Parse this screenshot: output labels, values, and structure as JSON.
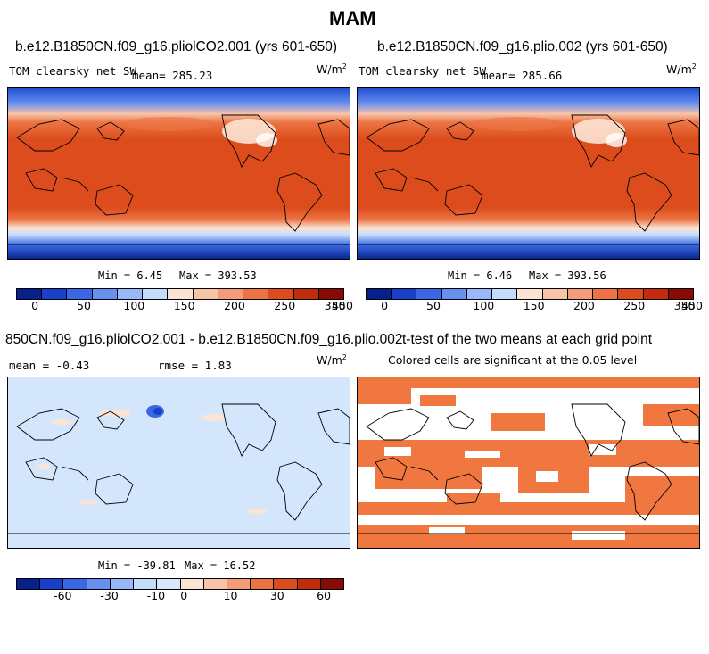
{
  "figure_title": "MAM",
  "panels": {
    "a": {
      "title": "b.e12.B1850CN.f09_g16.pliolCO2.001 (yrs 601-650)",
      "variable": "TOM clearsky net SW",
      "mean": "mean= 285.23",
      "units": "W/m",
      "units_exp": "2",
      "min": "Min =    6.45",
      "max": "Max = 393.53"
    },
    "b": {
      "title": "b.e12.B1850CN.f09_g16.plio.002 (yrs 601-650)",
      "variable": "TOM clearsky net SW",
      "mean": "mean= 285.66",
      "units": "W/m",
      "units_exp": "2",
      "min": "Min =    6.46",
      "max": "Max = 393.56"
    },
    "c": {
      "title": "850CN.f09_g16.pliolCO2.001 - b.e12.B1850CN.f09_g16.plio.002",
      "mean": "mean =  -0.43",
      "rmse": "rmse =   1.83",
      "units": "W/m",
      "units_exp": "2",
      "min": "Min = -39.81",
      "max": "Max =  16.52"
    },
    "d": {
      "title": "t-test of the two means at each grid point",
      "subtitle": "Colored cells are significant at the 0.05 level"
    }
  },
  "colorbars": {
    "abs": {
      "colors": [
        "#08208c",
        "#1840c8",
        "#3a68e4",
        "#6890f0",
        "#98b8f8",
        "#c4dcfc",
        "#fce4d4",
        "#f8c4a8",
        "#f49c78",
        "#ec7444",
        "#dc4c1c",
        "#c02c0c",
        "#880c04"
      ],
      "labels": [
        "0",
        "50",
        "100",
        "150",
        "200",
        "250",
        "350",
        "450"
      ]
    },
    "diff": {
      "colors": [
        "#08208c",
        "#1840c8",
        "#3a68e4",
        "#6890f0",
        "#98b8f8",
        "#c4dcfc",
        "#d8e8fc",
        "#fce4d4",
        "#f8c4a8",
        "#f49c78",
        "#ec7444",
        "#dc4c1c",
        "#c02c0c",
        "#880c04"
      ],
      "labels": [
        "-60",
        "-30",
        "-10",
        "0",
        "10",
        "30",
        "60"
      ]
    }
  },
  "colors": {
    "diff_background": "#d4e6fc",
    "significance": "#f07840"
  }
}
